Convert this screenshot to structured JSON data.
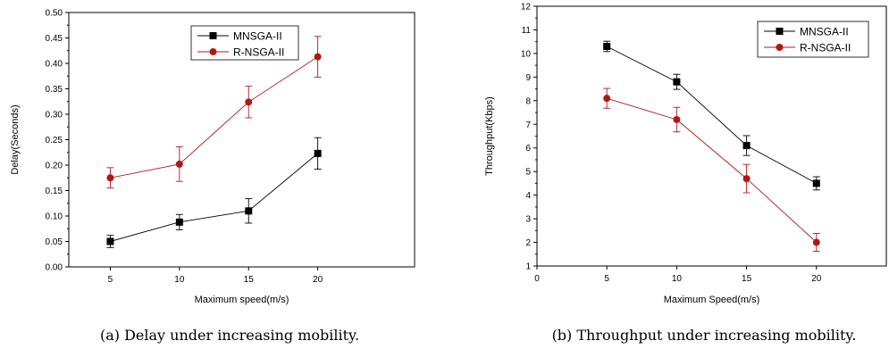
{
  "chart_data": [
    {
      "type": "line",
      "caption": "(a) Delay under increasing mobility.",
      "xlabel": "Maximum speed(m/s)",
      "ylabel": "Delay(Seconds)",
      "xlim": [
        2,
        27
      ],
      "ylim": [
        0,
        0.5
      ],
      "xticks": [
        "5",
        "10",
        "15",
        "20"
      ],
      "yticks": [
        "0.00",
        "0.05",
        "0.10",
        "0.15",
        "0.20",
        "0.25",
        "0.30",
        "0.35",
        "0.40",
        "0.45",
        "0.50"
      ],
      "legend_position": "top-center",
      "grid": false,
      "series": [
        {
          "name": "MNSGA-II",
          "color": "#000000",
          "marker": "square",
          "x": [
            5,
            10,
            15,
            20
          ],
          "y": [
            0.05,
            0.088,
            0.11,
            0.223
          ],
          "err": [
            0.012,
            0.015,
            0.024,
            0.031
          ]
        },
        {
          "name": "R-NSGA-II",
          "color": "#b01818",
          "marker": "circle",
          "x": [
            5,
            10,
            15,
            20
          ],
          "y": [
            0.175,
            0.202,
            0.324,
            0.413
          ],
          "err": [
            0.02,
            0.034,
            0.031,
            0.04
          ]
        }
      ]
    },
    {
      "type": "line",
      "caption": "(b) Throughput under increasing mobility.",
      "xlabel": "Maximum Speed(m/s)",
      "ylabel": "Throughput(Kbps)",
      "xlim": [
        0,
        25
      ],
      "ylim": [
        1,
        12
      ],
      "xticks": [
        "0",
        "5",
        "10",
        "15",
        "20"
      ],
      "yticks": [
        "1",
        "2",
        "3",
        "4",
        "5",
        "6",
        "7",
        "8",
        "9",
        "10",
        "11",
        "12"
      ],
      "legend_position": "top-right",
      "grid": false,
      "series": [
        {
          "name": "MNSGA-II",
          "color": "#000000",
          "marker": "square",
          "x": [
            5,
            10,
            15,
            20
          ],
          "y": [
            10.3,
            8.8,
            6.1,
            4.5
          ],
          "err": [
            0.22,
            0.32,
            0.42,
            0.28
          ]
        },
        {
          "name": "R-NSGA-II",
          "color": "#b01818",
          "marker": "circle",
          "x": [
            5,
            10,
            15,
            20
          ],
          "y": [
            8.1,
            7.2,
            4.7,
            2.0
          ],
          "err": [
            0.42,
            0.52,
            0.6,
            0.38
          ]
        }
      ]
    }
  ]
}
